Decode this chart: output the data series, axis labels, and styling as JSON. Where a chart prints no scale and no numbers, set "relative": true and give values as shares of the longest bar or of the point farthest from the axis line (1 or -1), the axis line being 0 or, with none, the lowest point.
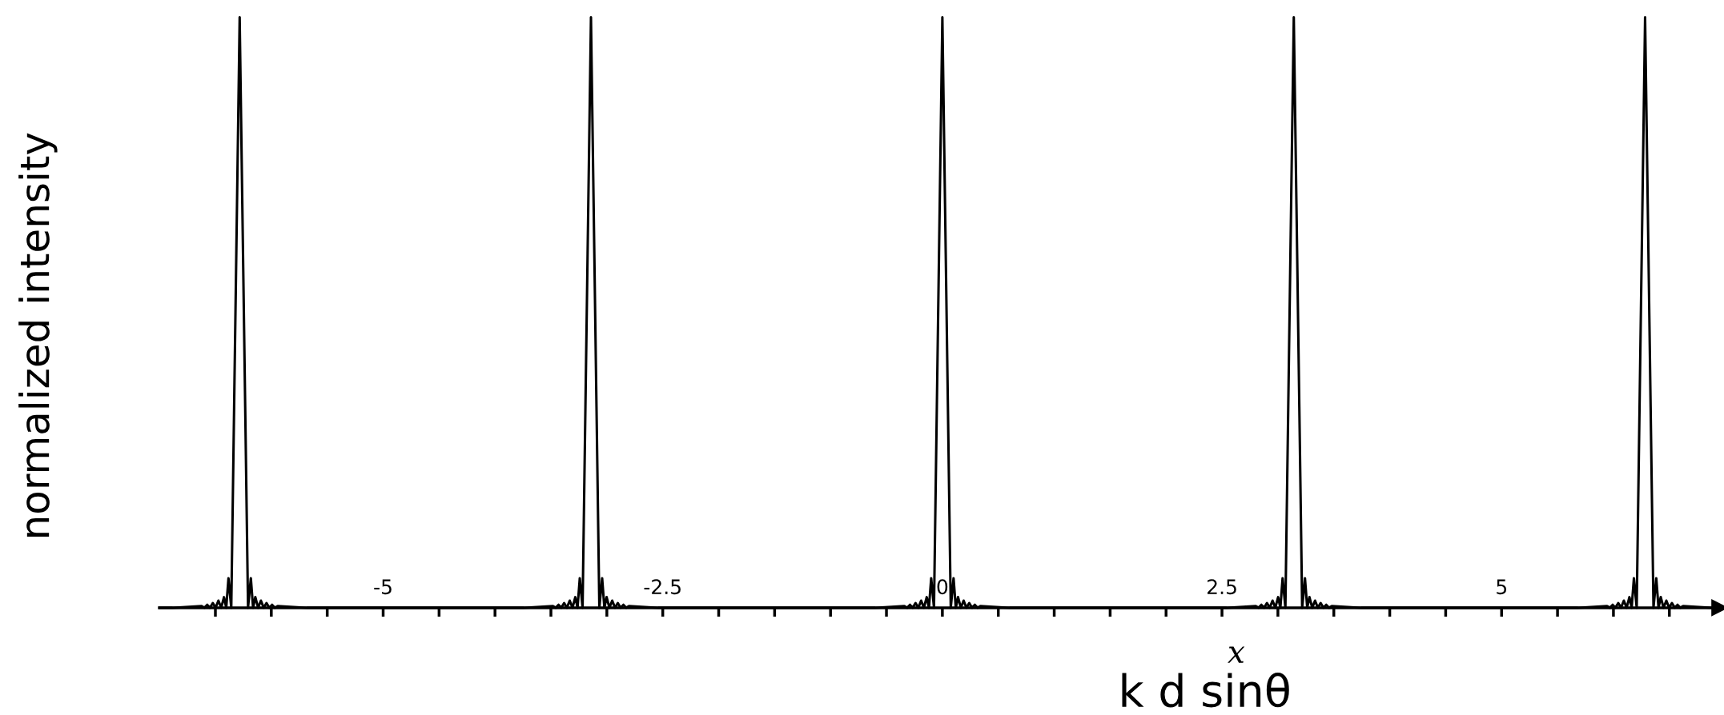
{
  "chart_data": {
    "type": "line",
    "relative": true,
    "xlabel": "k d sinθ",
    "ylabel": "normalized intensity",
    "annotations": [
      "x"
    ],
    "xlim": [
      -7,
      6.95
    ],
    "xticks": [
      {
        "value": -6.5,
        "label": null
      },
      {
        "value": -6,
        "label": null
      },
      {
        "value": -5.5,
        "label": null
      },
      -5,
      {
        "value": -4.5,
        "label": null
      },
      {
        "value": -4,
        "label": null
      },
      {
        "value": -3.5,
        "label": null
      },
      {
        "value": -3,
        "label": null
      },
      -2.5,
      {
        "value": -2,
        "label": null
      },
      {
        "value": -1.5,
        "label": null
      },
      {
        "value": -1,
        "label": null
      },
      {
        "value": -0.5,
        "label": null
      },
      0,
      {
        "value": 0.5,
        "label": null
      },
      {
        "value": 1,
        "label": null
      },
      {
        "value": 1.5,
        "label": null
      },
      {
        "value": 2,
        "label": null
      },
      2.5,
      {
        "value": 3,
        "label": null
      },
      {
        "value": 3.5,
        "label": null
      },
      {
        "value": 4,
        "label": null
      },
      {
        "value": 4.5,
        "label": null
      },
      5,
      {
        "value": 5.5,
        "label": null
      },
      {
        "value": 6,
        "label": null
      },
      {
        "value": 6.5,
        "label": null
      }
    ],
    "tick_labels": "x",
    "grid": false,
    "legend": false,
    "marker": "none",
    "line_style": "solid",
    "series": [
      {
        "color": "#000000",
        "x": [
          -7,
          -6.883,
          -6.623,
          -6.598,
          -6.573,
          -6.548,
          -6.523,
          -6.498,
          -6.473,
          -6.448,
          -6.423,
          -6.403,
          -6.383,
          -6.358,
          -6.313,
          -6.283,
          -6.253,
          -6.208,
          -6.183,
          -6.163,
          -6.143,
          -6.118,
          -6.093,
          -6.068,
          -6.043,
          -6.018,
          -5.993,
          -5.968,
          -5.943,
          -5.683,
          -3.742,
          -3.482,
          -3.457,
          -3.432,
          -3.407,
          -3.382,
          -3.357,
          -3.332,
          -3.307,
          -3.282,
          -3.262,
          -3.242,
          -3.217,
          -3.172,
          -3.142,
          -3.112,
          -3.067,
          -3.042,
          -3.022,
          -3.002,
          -2.977,
          -2.952,
          -2.927,
          -2.902,
          -2.877,
          -2.852,
          -2.827,
          -2.802,
          -2.542,
          -0.6,
          -0.34,
          -0.315,
          -0.29,
          -0.265,
          -0.24,
          -0.215,
          -0.19,
          -0.165,
          -0.14,
          -0.12,
          -0.1,
          -0.075,
          -0.03,
          0,
          0.03,
          0.075,
          0.1,
          0.12,
          0.14,
          0.165,
          0.19,
          0.215,
          0.24,
          0.265,
          0.29,
          0.315,
          0.34,
          0.6,
          2.542,
          2.802,
          2.827,
          2.852,
          2.877,
          2.902,
          2.927,
          2.952,
          2.977,
          3.002,
          3.022,
          3.042,
          3.067,
          3.112,
          3.142,
          3.172,
          3.217,
          3.242,
          3.262,
          3.282,
          3.307,
          3.332,
          3.357,
          3.382,
          3.407,
          3.432,
          3.457,
          3.482,
          3.742,
          5.683,
          5.943,
          5.968,
          5.993,
          6.018,
          6.043,
          6.068,
          6.093,
          6.118,
          6.143,
          6.163,
          6.183,
          6.208,
          6.253,
          6.283,
          6.313,
          6.358,
          6.383,
          6.403,
          6.423,
          6.448,
          6.473,
          6.498,
          6.523,
          6.548,
          6.573,
          6.598,
          6.623,
          6.883,
          6.9
        ],
        "values": [
          0,
          0,
          0.003,
          0,
          0.005,
          0,
          0.008,
          0,
          0.012,
          0,
          0.018,
          0,
          0.05,
          0,
          0.6,
          1,
          0.6,
          0,
          0.05,
          0,
          0.018,
          0,
          0.012,
          0,
          0.008,
          0,
          0.005,
          0,
          0.003,
          0,
          0,
          0.003,
          0,
          0.005,
          0,
          0.008,
          0,
          0.012,
          0,
          0.018,
          0,
          0.05,
          0,
          0.6,
          1,
          0.6,
          0,
          0.05,
          0,
          0.018,
          0,
          0.012,
          0,
          0.008,
          0,
          0.005,
          0,
          0.003,
          0,
          0,
          0.003,
          0,
          0.005,
          0,
          0.008,
          0,
          0.012,
          0,
          0.018,
          0,
          0.05,
          0,
          0.6,
          1,
          0.6,
          0,
          0.05,
          0,
          0.018,
          0,
          0.012,
          0,
          0.008,
          0,
          0.005,
          0,
          0.003,
          0,
          0,
          0.003,
          0,
          0.005,
          0,
          0.008,
          0,
          0.012,
          0,
          0.018,
          0,
          0.05,
          0,
          0.6,
          1,
          0.6,
          0,
          0.05,
          0,
          0.018,
          0,
          0.012,
          0,
          0.008,
          0,
          0.005,
          0,
          0.003,
          0,
          0,
          0.003,
          0,
          0.005,
          0,
          0.008,
          0,
          0.012,
          0,
          0.018,
          0,
          0.05,
          0,
          0.6,
          1,
          0.6,
          0,
          0.05,
          0,
          0.018,
          0,
          0.012,
          0,
          0.008,
          0,
          0.005,
          0,
          0.003,
          0,
          0
        ]
      }
    ]
  }
}
